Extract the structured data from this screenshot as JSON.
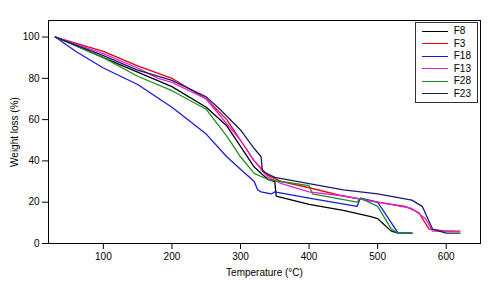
{
  "chart_data": {
    "type": "line",
    "x_label": "Temperature (°C)",
    "y_label": "Weight loss (%)",
    "xlim": [
      20,
      650
    ],
    "ylim": [
      0,
      108
    ],
    "xticks": [
      100,
      200,
      300,
      400,
      500,
      600
    ],
    "yticks": [
      0,
      20,
      40,
      60,
      80,
      100
    ],
    "grid": false,
    "legend": "top-right",
    "series": [
      {
        "name": "F8",
        "color": "#000000",
        "x": [
          30,
          100,
          150,
          200,
          250,
          280,
          300,
          320,
          340,
          350,
          352,
          400,
          450,
          490,
          500,
          520,
          530,
          550
        ],
        "values": [
          100,
          90,
          83,
          76,
          66,
          57,
          47,
          37,
          31,
          30,
          23,
          19,
          16,
          13,
          12,
          6,
          5,
          5
        ]
      },
      {
        "name": "F3",
        "color": "#e8000b",
        "x": [
          30,
          100,
          150,
          200,
          250,
          280,
          300,
          320,
          340,
          360,
          400,
          450,
          500,
          540,
          560,
          575,
          600,
          620
        ],
        "values": [
          100,
          93,
          86,
          80,
          70,
          60,
          50,
          40,
          33,
          30,
          27,
          23,
          20,
          18,
          15,
          7,
          6,
          6
        ]
      },
      {
        "name": "F18",
        "color": "#1a1adb",
        "x": [
          30,
          60,
          100,
          150,
          200,
          250,
          280,
          300,
          320,
          325,
          330,
          345,
          350,
          400,
          470,
          475,
          500,
          520,
          530,
          550
        ],
        "values": [
          100,
          93,
          85,
          77,
          66,
          53,
          42,
          36,
          30,
          26,
          25,
          24,
          25,
          22,
          18,
          22,
          20,
          10,
          5,
          5
        ]
      },
      {
        "name": "F13",
        "color": "#e020e0",
        "x": [
          30,
          100,
          150,
          180,
          190,
          200,
          250,
          280,
          300,
          320,
          340,
          360,
          400,
          450,
          500,
          550,
          570,
          580,
          610
        ],
        "values": [
          100,
          92,
          85,
          80,
          79,
          78,
          70,
          58,
          50,
          40,
          32,
          29,
          25,
          23,
          20,
          17,
          12,
          6,
          6
        ]
      },
      {
        "name": "F28",
        "color": "#1f8f1f",
        "x": [
          30,
          100,
          150,
          200,
          250,
          280,
          300,
          320,
          340,
          400,
          405,
          470,
          475,
          500,
          520,
          530,
          550
        ],
        "values": [
          100,
          90,
          81,
          74,
          65,
          52,
          42,
          34,
          31,
          28,
          24,
          20,
          22,
          18,
          7,
          5,
          5
        ]
      },
      {
        "name": "F23",
        "color": "#1a1a6e",
        "x": [
          30,
          100,
          150,
          200,
          250,
          270,
          300,
          320,
          330,
          332,
          350,
          400,
          450,
          500,
          550,
          565,
          580,
          600,
          620
        ],
        "values": [
          100,
          91,
          84,
          79,
          71,
          65,
          55,
          46,
          42,
          35,
          32,
          29,
          26,
          24,
          21,
          18,
          7,
          5,
          5
        ]
      }
    ]
  }
}
